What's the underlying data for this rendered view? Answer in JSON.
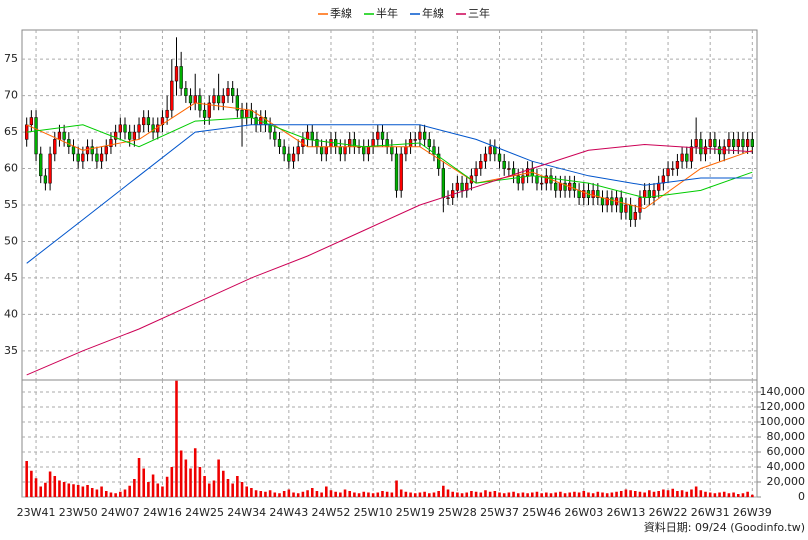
{
  "footer": "資料日期: 09/24 (Goodinfo.tw)",
  "chart_data": [
    {
      "type": "candlestick",
      "legend": "top",
      "grid": true,
      "up_color": "#ff0000",
      "down_color": "#00b000",
      "xlim": [
        -1,
        156
      ],
      "ylim": [
        31,
        79
      ],
      "yticks": [
        35,
        40,
        45,
        50,
        55,
        60,
        65,
        70,
        75
      ],
      "open": [
        64,
        66,
        67,
        62,
        59,
        58,
        62,
        64,
        65,
        64,
        63,
        62,
        61,
        62,
        63,
        62,
        61,
        62,
        63,
        64,
        65,
        66,
        65,
        64,
        65,
        66,
        67,
        66,
        65,
        66,
        67,
        68,
        72,
        74,
        71,
        70,
        69,
        70,
        68,
        67,
        69,
        70,
        69,
        70,
        71,
        70,
        68,
        67,
        68,
        67,
        66,
        67,
        66,
        65,
        64,
        63,
        62,
        61,
        62,
        63,
        64,
        65,
        64,
        63,
        62,
        63,
        64,
        63,
        62,
        63,
        64,
        63,
        63,
        62,
        63,
        64,
        65,
        64,
        63,
        62,
        57,
        62,
        63,
        64,
        64,
        65,
        64,
        63,
        62,
        60,
        56,
        56,
        57,
        58,
        57,
        58,
        59,
        60,
        61,
        62,
        63,
        62,
        61,
        60,
        60,
        59,
        58,
        59,
        60,
        59,
        58,
        58,
        59,
        58,
        57,
        58,
        57,
        58,
        57,
        56,
        57,
        56,
        57,
        56,
        55,
        56,
        55,
        56,
        54,
        55,
        53,
        54,
        56,
        57,
        56,
        57,
        58,
        59,
        60,
        60,
        61,
        62,
        61,
        63,
        64,
        62,
        63,
        64,
        63,
        62,
        63,
        64,
        63,
        64,
        63,
        64
      ],
      "high": [
        67,
        68,
        68,
        63,
        60,
        63,
        65,
        66,
        66,
        65,
        64,
        63,
        63,
        64,
        64,
        63,
        63,
        64,
        65,
        66,
        67,
        67,
        66,
        66,
        67,
        68,
        68,
        67,
        67,
        68,
        70,
        75,
        78,
        76,
        72,
        71,
        73,
        71,
        69,
        70,
        71,
        73,
        71,
        72,
        72,
        71,
        69,
        69,
        69,
        68,
        68,
        68,
        67,
        66,
        65,
        64,
        63,
        63,
        64,
        65,
        66,
        66,
        65,
        64,
        64,
        65,
        65,
        64,
        64,
        65,
        65,
        64,
        64,
        64,
        65,
        66,
        66,
        65,
        64,
        63,
        63,
        64,
        65,
        65,
        66,
        66,
        65,
        64,
        63,
        61,
        57,
        58,
        59,
        59,
        59,
        60,
        61,
        62,
        63,
        64,
        64,
        63,
        62,
        61,
        61,
        60,
        60,
        61,
        61,
        60,
        59,
        60,
        60,
        59,
        59,
        59,
        59,
        59,
        58,
        58,
        58,
        58,
        58,
        57,
        57,
        57,
        57,
        57,
        56,
        56,
        55,
        57,
        58,
        58,
        58,
        59,
        60,
        61,
        61,
        62,
        63,
        63,
        64,
        67,
        65,
        64,
        65,
        65,
        64,
        64,
        65,
        65,
        65,
        65,
        65,
        65
      ],
      "low": [
        63,
        65,
        61,
        58,
        57,
        57,
        61,
        63,
        63,
        62,
        61,
        60,
        60,
        61,
        61,
        60,
        60,
        61,
        62,
        63,
        64,
        64,
        63,
        63,
        64,
        65,
        65,
        64,
        64,
        65,
        66,
        67,
        70,
        70,
        69,
        68,
        68,
        67,
        66,
        66,
        68,
        68,
        68,
        69,
        69,
        67,
        63,
        66,
        66,
        65,
        65,
        65,
        64,
        63,
        62,
        61,
        60,
        60,
        61,
        62,
        63,
        63,
        62,
        61,
        61,
        62,
        62,
        61,
        61,
        62,
        62,
        62,
        61,
        61,
        62,
        63,
        63,
        62,
        61,
        56,
        56,
        61,
        62,
        63,
        63,
        63,
        62,
        61,
        59,
        54,
        55,
        55,
        56,
        56,
        56,
        57,
        58,
        59,
        60,
        61,
        61,
        60,
        59,
        59,
        58,
        57,
        57,
        58,
        58,
        57,
        57,
        57,
        57,
        56,
        56,
        56,
        56,
        56,
        55,
        55,
        55,
        55,
        55,
        54,
        54,
        54,
        54,
        53,
        53,
        52,
        52,
        53,
        55,
        55,
        55,
        56,
        57,
        58,
        59,
        59,
        60,
        60,
        60,
        62,
        61,
        61,
        62,
        62,
        61,
        61,
        62,
        62,
        62,
        62,
        62,
        62
      ],
      "close": [
        66,
        67,
        62,
        59,
        58,
        62,
        64,
        65,
        64,
        63,
        62,
        61,
        62,
        63,
        62,
        61,
        62,
        63,
        64,
        65,
        66,
        65,
        64,
        65,
        66,
        67,
        66,
        65,
        66,
        67,
        68,
        72,
        74,
        71,
        70,
        69,
        70,
        68,
        67,
        69,
        70,
        69,
        70,
        71,
        70,
        68,
        67,
        68,
        67,
        66,
        67,
        66,
        65,
        64,
        63,
        62,
        61,
        62,
        63,
        64,
        65,
        64,
        63,
        62,
        63,
        64,
        63,
        62,
        63,
        64,
        63,
        63,
        62,
        63,
        64,
        65,
        64,
        63,
        62,
        57,
        62,
        63,
        64,
        64,
        65,
        64,
        63,
        62,
        60,
        56,
        56,
        57,
        58,
        57,
        58,
        59,
        60,
        61,
        62,
        63,
        62,
        61,
        60,
        60,
        59,
        58,
        59,
        60,
        59,
        58,
        58,
        59,
        58,
        57,
        58,
        57,
        58,
        57,
        56,
        57,
        56,
        57,
        56,
        55,
        56,
        55,
        56,
        54,
        55,
        53,
        54,
        56,
        57,
        56,
        57,
        58,
        59,
        60,
        60,
        61,
        62,
        61,
        63,
        64,
        62,
        63,
        64,
        63,
        62,
        63,
        64,
        63,
        64,
        63,
        64,
        63
      ],
      "series": [
        {
          "name": "季線",
          "color": "#ff6600",
          "x": [
            0,
            12,
            24,
            36,
            48,
            60,
            72,
            84,
            96,
            108,
            120,
            132,
            144,
            155
          ],
          "values": [
            66,
            62.5,
            64,
            69,
            68,
            63,
            63,
            63,
            58,
            59.5,
            56.5,
            54.5,
            60,
            62.5
          ]
        },
        {
          "name": "半年",
          "color": "#00cc00",
          "x": [
            0,
            12,
            24,
            36,
            48,
            60,
            72,
            84,
            96,
            108,
            120,
            132,
            144,
            155
          ],
          "values": [
            65,
            66,
            63,
            66.5,
            67,
            64,
            63,
            63.5,
            58,
            59,
            58,
            56,
            57,
            59.5
          ]
        },
        {
          "name": "年線",
          "color": "#0055cc",
          "x": [
            0,
            12,
            24,
            36,
            48,
            60,
            72,
            84,
            96,
            108,
            120,
            132,
            144,
            155
          ],
          "values": [
            47,
            53,
            59,
            65,
            66,
            66,
            66,
            66,
            64,
            61,
            59,
            57.7,
            58.7,
            58.7
          ]
        },
        {
          "name": "三年",
          "color": "#cc0055",
          "x": [
            0,
            12,
            24,
            36,
            48,
            60,
            72,
            84,
            96,
            108,
            120,
            132,
            144,
            155
          ],
          "values": [
            31.7,
            35,
            38,
            41.5,
            45,
            48,
            51.5,
            55,
            57.5,
            60,
            62.5,
            63.3,
            62.8,
            62.3
          ]
        }
      ]
    },
    {
      "type": "bar",
      "grid": true,
      "color": "#ee0000",
      "xlim": [
        -1,
        156
      ],
      "ylim": [
        0,
        156000
      ],
      "yticks": [
        0,
        {
          "value": 20000,
          "label": "20,000"
        },
        {
          "value": 40000,
          "label": "40,000"
        },
        {
          "value": 60000,
          "label": "60,000"
        },
        {
          "value": 80000,
          "label": "80,000"
        },
        {
          "value": 100000,
          "label": "100,000"
        },
        {
          "value": 120000,
          "label": "120,000"
        },
        {
          "value": 140000,
          "label": "140,000"
        }
      ],
      "xticks": [
        {
          "value": 2,
          "label": "23W41"
        },
        {
          "value": 11,
          "label": "23W50"
        },
        {
          "value": 20,
          "label": "24W07"
        },
        {
          "value": 29,
          "label": "24W16"
        },
        {
          "value": 38,
          "label": "24W25"
        },
        {
          "value": 47,
          "label": "24W34"
        },
        {
          "value": 56,
          "label": "24W43"
        },
        {
          "value": 65,
          "label": "24W52"
        },
        {
          "value": 74,
          "label": "25W10"
        },
        {
          "value": 83,
          "label": "25W19"
        },
        {
          "value": 92,
          "label": "25W28"
        },
        {
          "value": 101,
          "label": "25W37"
        },
        {
          "value": 110,
          "label": "25W46"
        },
        {
          "value": 119,
          "label": "26W03"
        },
        {
          "value": 128,
          "label": "26W13"
        },
        {
          "value": 137,
          "label": "26W22"
        },
        {
          "value": 146,
          "label": "26W31"
        },
        {
          "value": 155,
          "label": "26W39"
        }
      ],
      "values": [
        48000,
        35000,
        25000,
        14000,
        19000,
        34000,
        28000,
        22000,
        20000,
        18000,
        17000,
        16000,
        14000,
        16000,
        12000,
        10000,
        14000,
        8000,
        6000,
        5000,
        7000,
        10000,
        15000,
        24000,
        52000,
        38000,
        20000,
        30000,
        18000,
        14000,
        27000,
        40000,
        155000,
        62000,
        50000,
        38000,
        65000,
        40000,
        28000,
        18000,
        22000,
        50000,
        35000,
        24000,
        18000,
        28000,
        20000,
        14000,
        12000,
        9000,
        8000,
        7000,
        9000,
        6000,
        5000,
        8000,
        10000,
        6000,
        5000,
        7000,
        9000,
        12000,
        8000,
        6000,
        14000,
        9000,
        7000,
        6000,
        10000,
        8000,
        6000,
        5000,
        7000,
        6000,
        5000,
        6000,
        8000,
        7000,
        6000,
        22000,
        10000,
        7000,
        6000,
        5000,
        6000,
        7000,
        5000,
        6000,
        8000,
        15000,
        10000,
        7000,
        6000,
        5000,
        6000,
        8000,
        7000,
        6000,
        9000,
        7000,
        8000,
        6000,
        5000,
        6000,
        7000,
        5000,
        6000,
        5000,
        6000,
        7000,
        5000,
        6000,
        5000,
        6000,
        7000,
        5000,
        6000,
        7000,
        6000,
        8000,
        6000,
        5000,
        7000,
        6000,
        5000,
        6000,
        7000,
        8000,
        10000,
        9000,
        8000,
        7000,
        6000,
        9000,
        7000,
        8000,
        10000,
        9000,
        11000,
        8000,
        9000,
        7000,
        10000,
        14000,
        9000,
        7000,
        6000,
        5000,
        6000,
        7000,
        5000,
        6000,
        4000,
        5000,
        7000,
        3000
      ]
    }
  ]
}
